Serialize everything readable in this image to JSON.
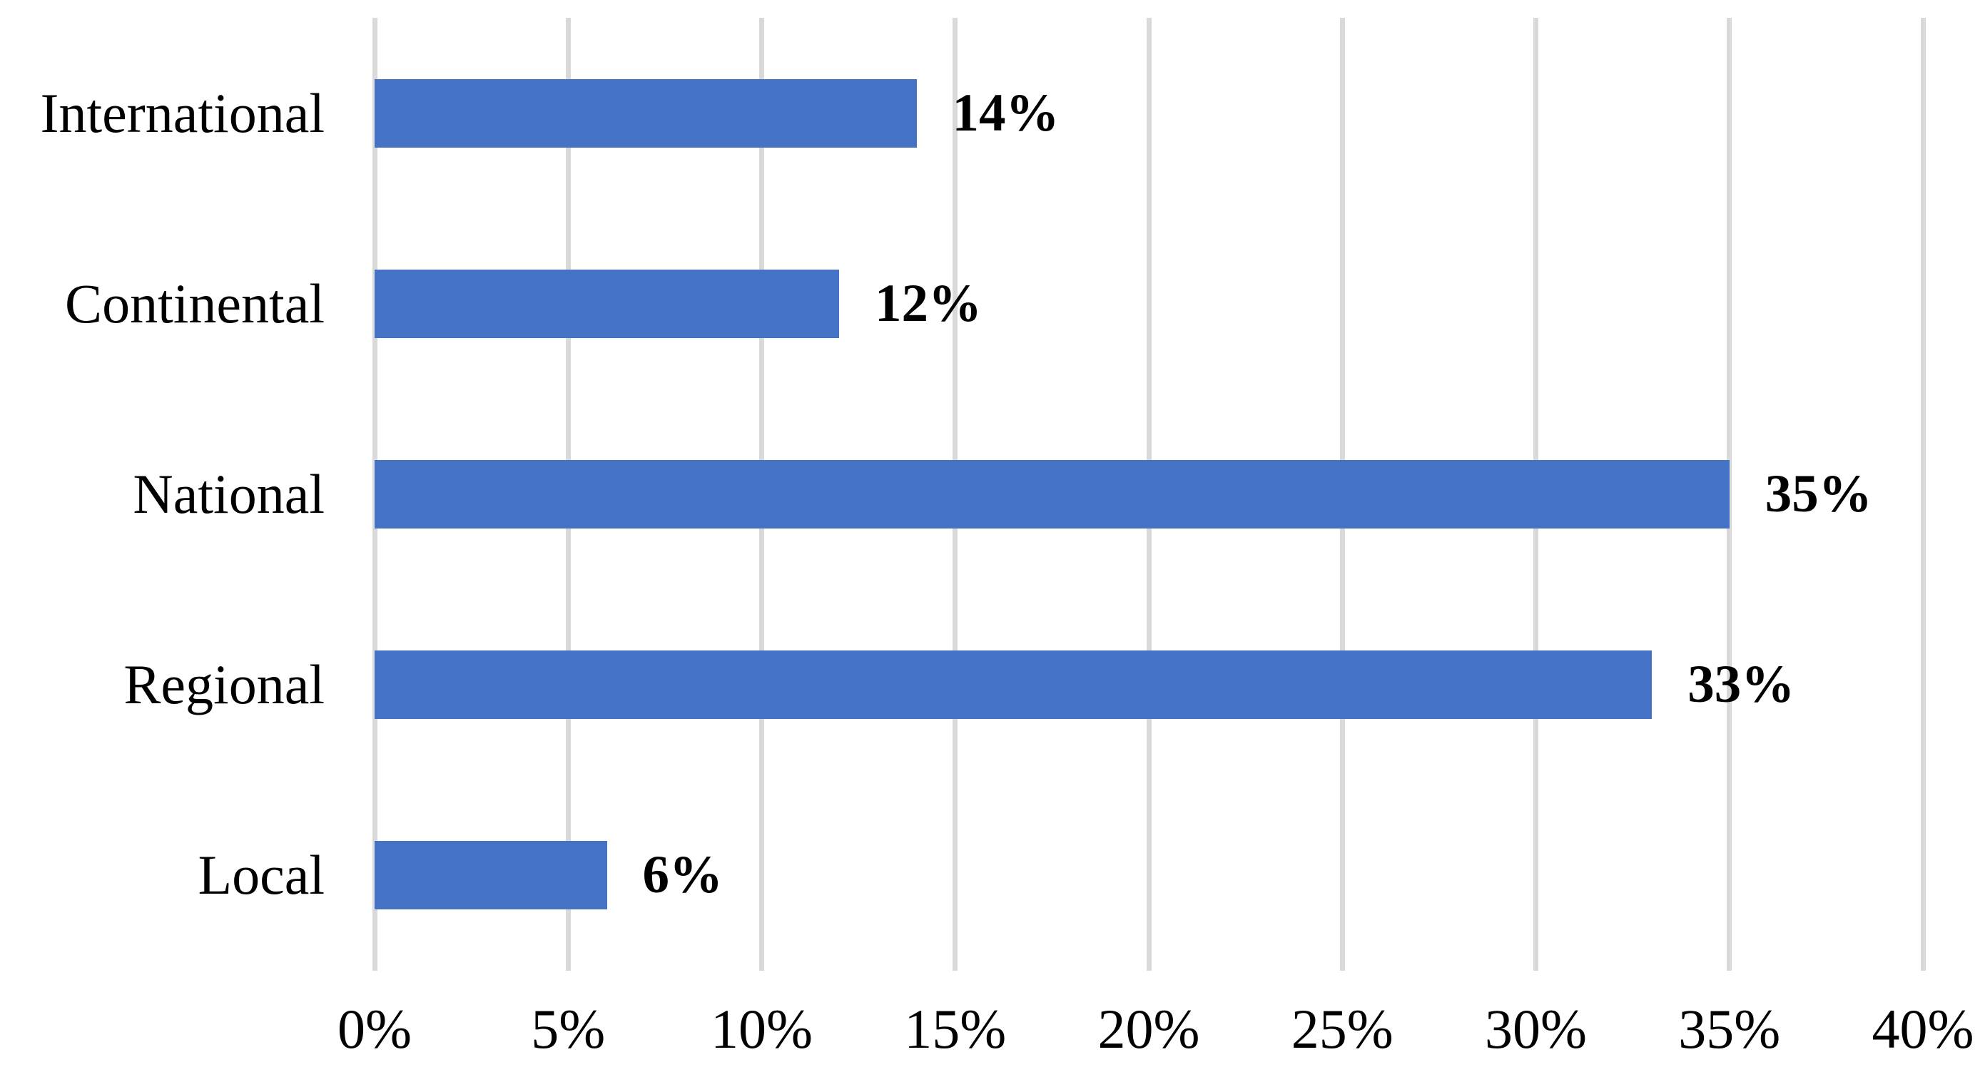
{
  "chart_data": {
    "type": "bar",
    "orientation": "horizontal",
    "title": "",
    "xlabel": "",
    "ylabel": "",
    "categories": [
      "International",
      "Continental",
      "National",
      "Regional",
      "Local"
    ],
    "values": [
      14,
      12,
      35,
      33,
      6
    ],
    "value_labels": [
      "14%",
      "12%",
      "35%",
      "33%",
      "6%"
    ],
    "xlim": [
      0,
      40
    ],
    "x_ticks": [
      0,
      5,
      10,
      15,
      20,
      25,
      30,
      35,
      40
    ],
    "x_tick_labels": [
      "0%",
      "5%",
      "10%",
      "15%",
      "20%",
      "25%",
      "30%",
      "35%",
      "40%"
    ],
    "grid": "vertical-only",
    "legend": "none",
    "colors": {
      "bar": "#4472C4",
      "gridline": "#D9D9D9",
      "text": "#000000",
      "background": "#FFFFFF"
    }
  }
}
